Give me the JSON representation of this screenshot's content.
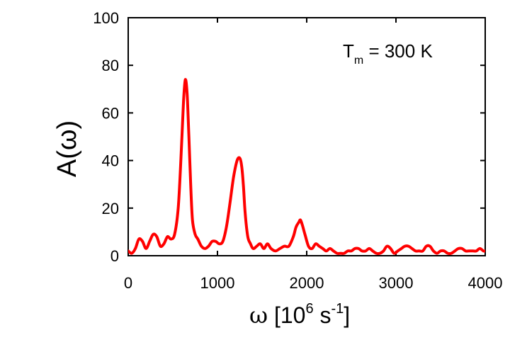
{
  "chart_data": {
    "type": "line",
    "xlabel": {
      "symbol": "ω",
      "open": " [10",
      "exp": "6",
      "mid": " s",
      "exp2": "-1",
      "close": "]"
    },
    "ylabel": "A(ω)",
    "annotation": {
      "main": "T",
      "sub": "m",
      "rest": " = 300 K"
    },
    "xlim": [
      0,
      4000
    ],
    "ylim": [
      0,
      100
    ],
    "xticks": [
      0,
      1000,
      2000,
      3000,
      4000
    ],
    "yticks": [
      0,
      20,
      40,
      60,
      80,
      100
    ],
    "grid": false,
    "series": [
      {
        "color": "#ff0000",
        "x": [
          0,
          40,
          80,
          120,
          160,
          200,
          240,
          280,
          320,
          360,
          400,
          440,
          480,
          520,
          560,
          590,
          620,
          640,
          660,
          680,
          700,
          720,
          750,
          780,
          820,
          860,
          900,
          940,
          980,
          1020,
          1060,
          1100,
          1140,
          1180,
          1220,
          1250,
          1270,
          1290,
          1310,
          1340,
          1370,
          1400,
          1440,
          1480,
          1520,
          1560,
          1600,
          1650,
          1700,
          1750,
          1800,
          1850,
          1880,
          1910,
          1930,
          1950,
          1980,
          2020,
          2060,
          2100,
          2140,
          2180,
          2220,
          2260,
          2300,
          2340,
          2380,
          2420,
          2460,
          2500,
          2540,
          2580,
          2620,
          2660,
          2700,
          2740,
          2780,
          2820,
          2860,
          2900,
          2940,
          2980,
          3020,
          3060,
          3100,
          3140,
          3180,
          3220,
          3260,
          3300,
          3340,
          3380,
          3420,
          3460,
          3500,
          3540,
          3580,
          3620,
          3660,
          3700,
          3740,
          3780,
          3820,
          3860,
          3900,
          3940,
          3980,
          4000
        ],
        "y": [
          2,
          1,
          3,
          7,
          6,
          3,
          6,
          9,
          8,
          4,
          5,
          8,
          7,
          9,
          20,
          40,
          65,
          74,
          68,
          50,
          30,
          15,
          9,
          7,
          4,
          3,
          4,
          6,
          6,
          5,
          6,
          12,
          22,
          33,
          40,
          41,
          38,
          30,
          18,
          8,
          5,
          3,
          4,
          5,
          3,
          5,
          3,
          2,
          3,
          4,
          4,
          8,
          12,
          14,
          15,
          13,
          9,
          4,
          3,
          5,
          4,
          3,
          2,
          3,
          2,
          1,
          1,
          1,
          2,
          2,
          3,
          3,
          2,
          2,
          3,
          2,
          1,
          1,
          2,
          4,
          3,
          1,
          2,
          3,
          4,
          4,
          3,
          2,
          2,
          2,
          4,
          4,
          2,
          1,
          2,
          2,
          1,
          1,
          2,
          3,
          3,
          2,
          2,
          2,
          2,
          3,
          2,
          2
        ]
      }
    ]
  }
}
